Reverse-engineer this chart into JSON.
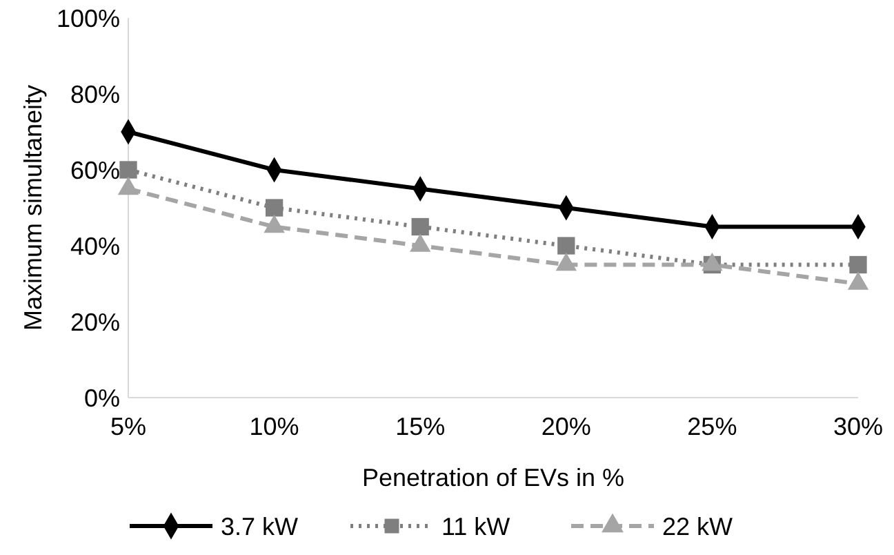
{
  "chart_data": {
    "type": "line",
    "xlabel": "Penetration of EVs in %",
    "ylabel": "Maximum simultaneity",
    "categories": [
      "5%",
      "10%",
      "15%",
      "20%",
      "25%",
      "30%"
    ],
    "series": [
      {
        "name": "3.7 kW",
        "color": "#000000",
        "marker": "diamond",
        "line_style": "solid",
        "values": [
          70,
          60,
          55,
          50,
          45,
          45
        ]
      },
      {
        "name": "11 kW",
        "color": "#7f7f7f",
        "marker": "square",
        "line_style": "dotted",
        "values": [
          60,
          50,
          45,
          40,
          35,
          35
        ]
      },
      {
        "name": "22 kW",
        "color": "#a5a5a5",
        "marker": "triangle",
        "line_style": "dashed",
        "values": [
          55,
          45,
          40,
          35,
          35,
          30
        ]
      }
    ],
    "ylim": [
      0,
      100
    ],
    "yticks": [
      {
        "value": 0,
        "label": "0%"
      },
      {
        "value": 20,
        "label": "20%"
      },
      {
        "value": 40,
        "label": "40%"
      },
      {
        "value": 60,
        "label": "60%"
      },
      {
        "value": 80,
        "label": "80%"
      },
      {
        "value": 100,
        "label": "100%"
      }
    ],
    "grid": false,
    "legend": "bottom"
  }
}
